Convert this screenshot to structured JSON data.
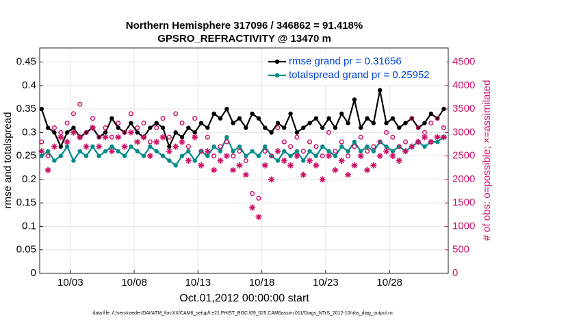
{
  "chart_data": {
    "type": "line",
    "title": "Northern Hemisphere 317096 / 346862 = 91.418%",
    "subtitle": "GPSRO_REFRACTIVITY @ 13470 m",
    "xlabel": "Oct.01,2012 00:00:00 start",
    "ylabel": "rmse and totalspread",
    "y2label": "# of obs: o=possible; ×=assimilated",
    "footnote": "data file: /Users/raeder/DAI/ATM_forcXX/CAM6_setup/f.e21.FHIST_BGC.f09_025.CAM6assim.011/Diags_NTrS_2012-10/obs_diag_output.nc",
    "x": [
      0.75,
      1.25,
      1.75,
      2.25,
      2.75,
      3.25,
      3.75,
      4.25,
      4.75,
      5.25,
      5.75,
      6.25,
      6.75,
      7.25,
      7.75,
      8.25,
      8.75,
      9.25,
      9.75,
      10.25,
      10.75,
      11.25,
      11.75,
      12.25,
      12.75,
      13.25,
      13.75,
      14.25,
      14.75,
      15.25,
      15.75,
      16.25,
      16.75,
      17.25,
      17.75,
      18.25,
      18.75,
      19.25,
      19.75,
      20.25,
      20.75,
      21.25,
      21.75,
      22.25,
      22.75,
      23.25,
      23.75,
      24.25,
      24.75,
      25.25,
      25.75,
      26.25,
      26.75,
      27.25,
      27.75,
      28.25,
      28.75,
      29.25,
      29.75,
      30.25,
      30.75,
      31.25,
      31.75,
      32.25
    ],
    "xlim": [
      0.6,
      32.6
    ],
    "xticks": [
      {
        "value": 3,
        "label": "10/03"
      },
      {
        "value": 8,
        "label": "10/08"
      },
      {
        "value": 13,
        "label": "10/13"
      },
      {
        "value": 18,
        "label": "10/18"
      },
      {
        "value": 23,
        "label": "10/23"
      },
      {
        "value": 28,
        "label": "10/28"
      }
    ],
    "ylim": [
      0,
      0.48
    ],
    "yticks": [
      0,
      0.05,
      0.1,
      0.15,
      0.2,
      0.25,
      0.3,
      0.35,
      0.4,
      0.45
    ],
    "y2lim": [
      0,
      4800
    ],
    "y2ticks": [
      0,
      500,
      1000,
      1500,
      2000,
      2500,
      3000,
      3500,
      4000,
      4500
    ],
    "grid": true,
    "legend": "upper right",
    "series": [
      {
        "name": "rmse grand pr = 0.31656",
        "color": "#000000",
        "marker": "dot",
        "values": [
          0.35,
          0.31,
          0.3,
          0.27,
          0.3,
          0.31,
          0.29,
          0.3,
          0.31,
          0.29,
          0.3,
          0.33,
          0.31,
          0.3,
          0.32,
          0.3,
          0.29,
          0.31,
          0.32,
          0.31,
          0.27,
          0.3,
          0.29,
          0.31,
          0.3,
          0.32,
          0.31,
          0.34,
          0.33,
          0.35,
          0.32,
          0.33,
          0.31,
          0.34,
          0.33,
          0.31,
          0.3,
          0.32,
          0.31,
          0.34,
          0.3,
          0.31,
          0.32,
          0.33,
          0.31,
          0.33,
          0.31,
          0.34,
          0.32,
          0.37,
          0.31,
          0.33,
          0.32,
          0.39,
          0.32,
          0.33,
          0.31,
          0.32,
          0.33,
          0.31,
          0.32,
          0.34,
          0.33,
          0.35
        ]
      },
      {
        "name": "totalspread grand pr = 0.25952",
        "color": "#008b8b",
        "marker": "dot",
        "values": [
          0.25,
          0.26,
          0.24,
          0.25,
          0.27,
          0.24,
          0.26,
          0.25,
          0.27,
          0.25,
          0.26,
          0.27,
          0.26,
          0.25,
          0.27,
          0.26,
          0.25,
          0.27,
          0.26,
          0.25,
          0.24,
          0.23,
          0.25,
          0.26,
          0.24,
          0.26,
          0.25,
          0.27,
          0.26,
          0.29,
          0.26,
          0.27,
          0.25,
          0.26,
          0.25,
          0.27,
          0.25,
          0.24,
          0.26,
          0.25,
          0.26,
          0.24,
          0.26,
          0.25,
          0.27,
          0.26,
          0.25,
          0.27,
          0.26,
          0.28,
          0.26,
          0.27,
          0.26,
          0.28,
          0.27,
          0.26,
          0.27,
          0.26,
          0.27,
          0.28,
          0.27,
          0.28,
          0.28,
          0.29
        ]
      },
      {
        "color": "#cc1166",
        "marker": "o",
        "axis": "y2",
        "values": [
          2800,
          2500,
          3100,
          3000,
          3200,
          3400,
          3600,
          3000,
          3300,
          2900,
          3100,
          2900,
          3200,
          3000,
          3400,
          3100,
          3200,
          2800,
          3100,
          3300,
          2900,
          3400,
          3200,
          2700,
          3300,
          2600,
          2900,
          2500,
          2700,
          2800,
          2500,
          2600,
          2400,
          1700,
          1600,
          2600,
          2500,
          3100,
          2800,
          2700,
          2900,
          2600,
          2800,
          2700,
          2500,
          3000,
          2600,
          2800,
          2500,
          2700,
          2900,
          2600,
          2700,
          2800,
          3000,
          2900,
          2700,
          2800,
          3300,
          3100,
          3000,
          3200,
          3300,
          3100
        ]
      },
      {
        "color": "#cc1166",
        "marker": "*",
        "axis": "y2",
        "values": [
          2600,
          2200,
          2700,
          2900,
          2800,
          3000,
          2900,
          2700,
          3100,
          2700,
          2900,
          2600,
          2900,
          2700,
          3000,
          2800,
          2900,
          2500,
          2800,
          2900,
          2600,
          2700,
          2800,
          2400,
          2900,
          2300,
          2600,
          2200,
          2400,
          2500,
          2200,
          2300,
          2100,
          1400,
          1200,
          2300,
          2000,
          2600,
          2400,
          2300,
          2500,
          2100,
          2400,
          2300,
          2000,
          2500,
          2200,
          2400,
          2100,
          2300,
          2500,
          2200,
          2300,
          2500,
          2600,
          2500,
          2400,
          2600,
          2700,
          2800,
          2900,
          2800,
          2900,
          2900
        ]
      }
    ]
  }
}
